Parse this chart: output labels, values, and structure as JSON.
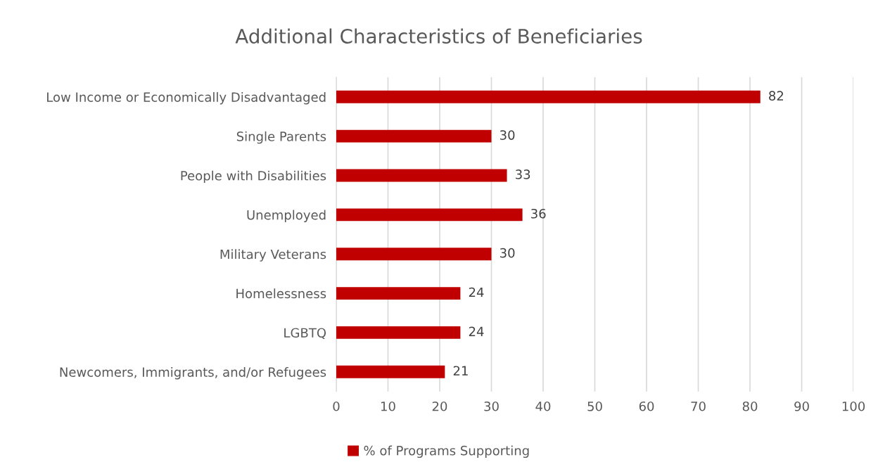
{
  "chart_data": {
    "type": "bar",
    "orientation": "horizontal",
    "title": "Additional Characteristics of Beneficiaries",
    "categories": [
      "Low Income or Economically Disadvantaged",
      "Single Parents",
      "People with Disabilities",
      "Unemployed",
      "Military Veterans",
      "Homelessness",
      "LGBTQ",
      "Newcomers, Immigrants, and/or Refugees"
    ],
    "series": [
      {
        "name": "% of Programs Supporting",
        "color": "#c00000",
        "values": [
          82,
          30,
          33,
          36,
          30,
          24,
          24,
          21
        ]
      }
    ],
    "xlim": [
      0,
      100
    ],
    "xticks": [
      0,
      10,
      20,
      30,
      40,
      50,
      60,
      70,
      80,
      90,
      100
    ],
    "grid": "x",
    "legend": "bottom",
    "data_labels": true
  }
}
